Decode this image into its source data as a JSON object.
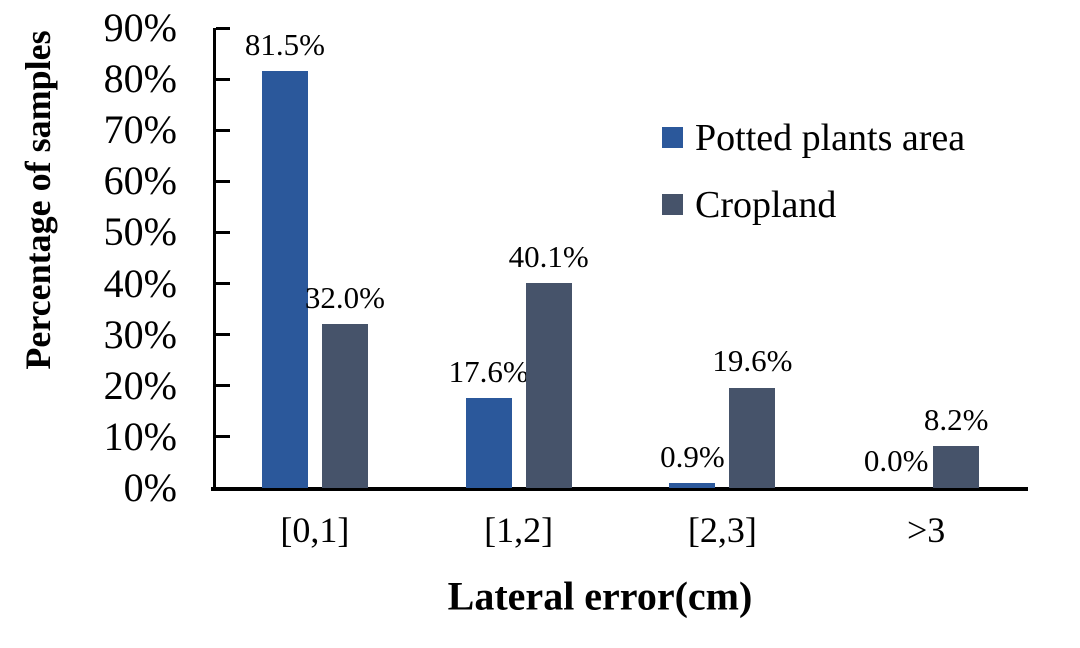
{
  "chart_data": {
    "type": "bar",
    "title": "",
    "xlabel": "Lateral error(cm)",
    "ylabel": "Percentage of samples",
    "categories": [
      "[0,1]",
      "[1,2]",
      "[2,3]",
      ">3"
    ],
    "series": [
      {
        "name": "Potted plants area",
        "color": "#2B589B",
        "values": [
          81.5,
          17.6,
          0.9,
          0.0
        ],
        "value_labels": [
          "81.5%",
          "17.6%",
          "0.9%",
          "0.0%"
        ]
      },
      {
        "name": "Cropland",
        "color": "#46536A",
        "values": [
          32.0,
          40.1,
          19.6,
          8.2
        ],
        "value_labels": [
          "32.0%",
          "40.1%",
          "19.6%",
          "8.2%"
        ]
      }
    ],
    "ylim": [
      0,
      90
    ],
    "yticks": [
      {
        "value": 0,
        "label": "0%"
      },
      {
        "value": 10,
        "label": "10%"
      },
      {
        "value": 20,
        "label": "20%"
      },
      {
        "value": 30,
        "label": "30%"
      },
      {
        "value": 40,
        "label": "40%"
      },
      {
        "value": 50,
        "label": "50%"
      },
      {
        "value": 60,
        "label": "60%"
      },
      {
        "value": 70,
        "label": "70%"
      },
      {
        "value": 80,
        "label": "80%"
      },
      {
        "value": 90,
        "label": "90%"
      }
    ],
    "grid": false,
    "legend_position": "inside-upper-right",
    "axis_color": "#000000",
    "text_color": "#000000",
    "background_color": "#ffffff"
  }
}
